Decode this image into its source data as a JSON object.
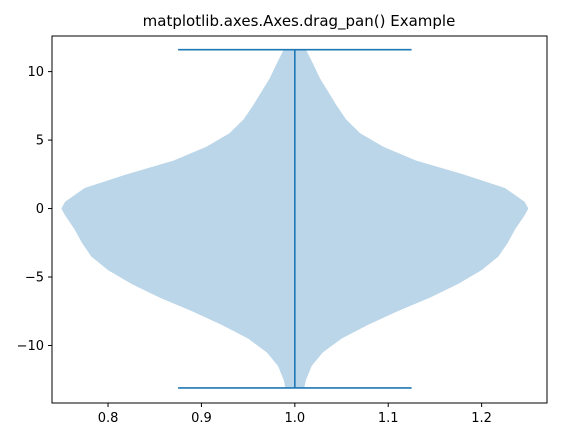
{
  "chart_data": {
    "type": "violin",
    "title": "matplotlib.axes.Axes.drag_pan() Example",
    "xlabel": "",
    "ylabel": "",
    "xlim": [
      0.74,
      1.27
    ],
    "ylim": [
      -14.2,
      12.6
    ],
    "x_ticks": [
      0.8,
      0.9,
      1.0,
      1.1,
      1.2
    ],
    "x_tick_labels": [
      "0.8",
      "0.9",
      "1.0",
      "1.1",
      "1.2"
    ],
    "y_ticks": [
      -10,
      -5,
      0,
      5,
      10
    ],
    "y_tick_labels": [
      "−10",
      "−5",
      "0",
      "5",
      "10"
    ],
    "grid": false,
    "violin": {
      "position": 1.0,
      "width": 0.5,
      "min": -13.1,
      "max": 11.6,
      "cap_width": 0.25,
      "fill_color": "#1f77b4",
      "fill_alpha": 0.3,
      "line_color": "#1f77b4",
      "density_profile": [
        {
          "y": -13.1,
          "half_width": 0.01
        },
        {
          "y": -12.5,
          "half_width": 0.012
        },
        {
          "y": -11.5,
          "half_width": 0.018
        },
        {
          "y": -10.5,
          "half_width": 0.03
        },
        {
          "y": -9.5,
          "half_width": 0.05
        },
        {
          "y": -8.5,
          "half_width": 0.078
        },
        {
          "y": -7.5,
          "half_width": 0.11
        },
        {
          "y": -6.5,
          "half_width": 0.145
        },
        {
          "y": -5.5,
          "half_width": 0.175
        },
        {
          "y": -4.5,
          "half_width": 0.2
        },
        {
          "y": -3.5,
          "half_width": 0.218
        },
        {
          "y": -2.5,
          "half_width": 0.228
        },
        {
          "y": -1.5,
          "half_width": 0.236
        },
        {
          "y": -0.5,
          "half_width": 0.246
        },
        {
          "y": 0.0,
          "half_width": 0.25
        },
        {
          "y": 0.5,
          "half_width": 0.246
        },
        {
          "y": 1.5,
          "half_width": 0.225
        },
        {
          "y": 2.5,
          "half_width": 0.18
        },
        {
          "y": 3.5,
          "half_width": 0.13
        },
        {
          "y": 4.5,
          "half_width": 0.095
        },
        {
          "y": 5.5,
          "half_width": 0.07
        },
        {
          "y": 6.5,
          "half_width": 0.055
        },
        {
          "y": 7.5,
          "half_width": 0.045
        },
        {
          "y": 8.5,
          "half_width": 0.036
        },
        {
          "y": 9.5,
          "half_width": 0.027
        },
        {
          "y": 10.5,
          "half_width": 0.02
        },
        {
          "y": 11.6,
          "half_width": 0.012
        }
      ]
    }
  }
}
